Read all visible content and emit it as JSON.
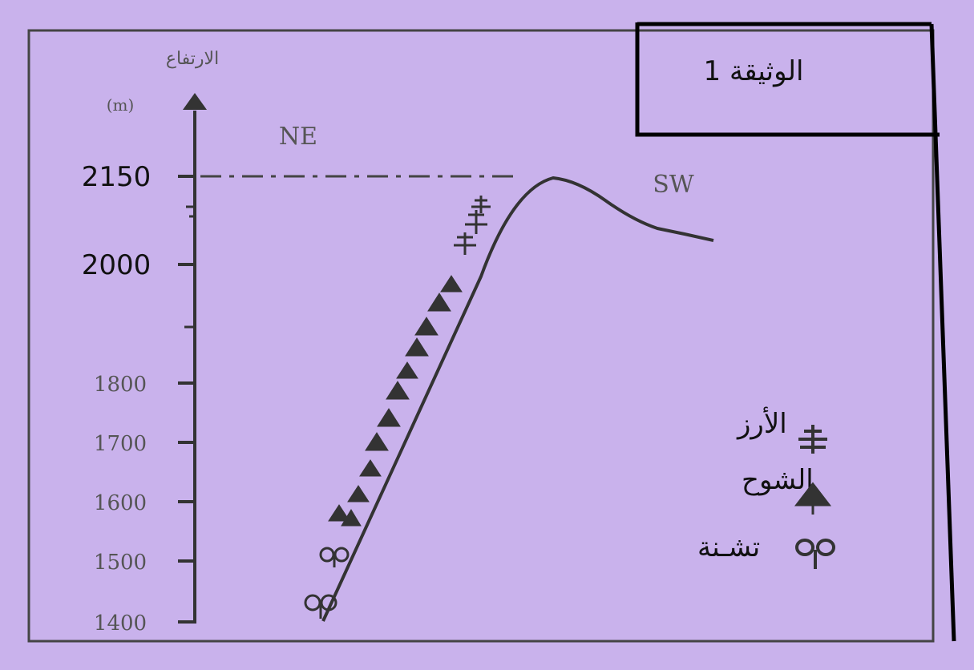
{
  "doc_label": "الوثيقة 1",
  "axis": {
    "title": "الارتفاع",
    "unit": "(m)",
    "ticks": [
      {
        "value": 2150,
        "label": "2150",
        "emphasized": true
      },
      {
        "value": 2000,
        "label": "2000",
        "emphasized": true
      },
      {
        "value": 1800,
        "label": "1800",
        "emphasized": false
      },
      {
        "value": 1700,
        "label": "1700",
        "emphasized": false
      },
      {
        "value": 1600,
        "label": "1600",
        "emphasized": false
      },
      {
        "value": 1500,
        "label": "1500",
        "emphasized": false
      },
      {
        "value": 1400,
        "label": "1400",
        "emphasized": false
      }
    ]
  },
  "directions": {
    "left": "NE",
    "right": "SW"
  },
  "legend": [
    {
      "label": "الأرز",
      "icon": "cedar-icon"
    },
    {
      "label": "الشوح",
      "icon": "fir-icon"
    },
    {
      "label": "تشـنة",
      "icon": "holm-oak-icon"
    }
  ],
  "colors": {
    "background": "#c9b2ec",
    "ink": "#2a2a2a",
    "border": "#000000"
  }
}
